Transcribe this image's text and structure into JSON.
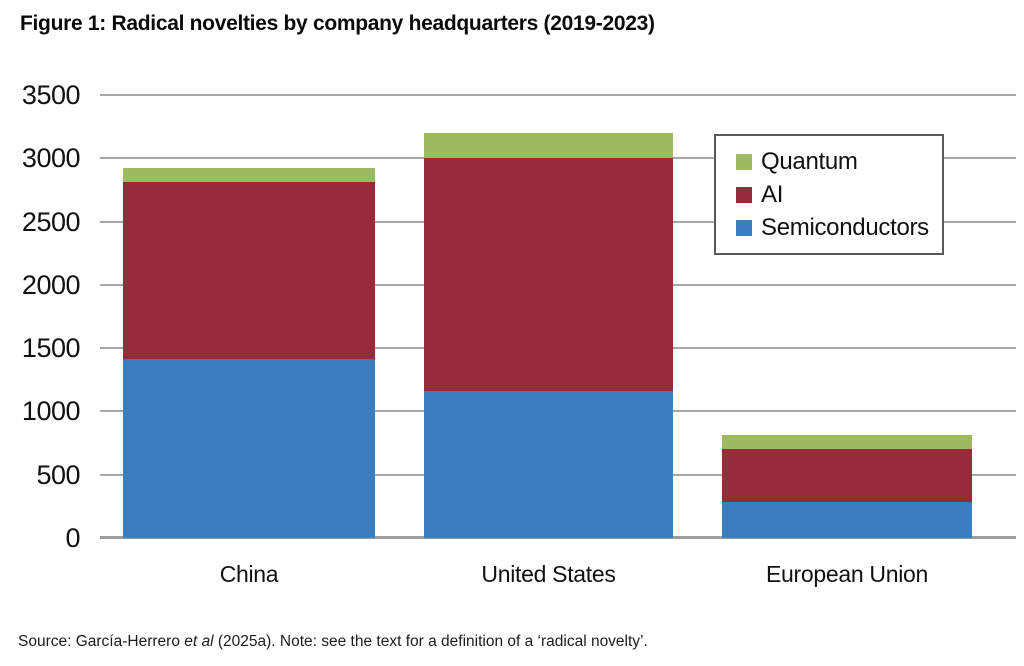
{
  "figure": {
    "title": "Figure 1: Radical novelties by company headquarters (2019-2023)",
    "source_prefix": "Source: García-Herrero ",
    "source_italic": "et al",
    "source_suffix": " (2025a). Note: see the text for a definition of a ‘radical novelty’."
  },
  "colors": {
    "semiconductors": "#3A7EBD",
    "ai": "#972B3A",
    "quantum": "#9DBA61",
    "gridline": "#A6A6A6",
    "legend_border": "#595959"
  },
  "chart_data": {
    "type": "bar",
    "stacked": true,
    "title": "Figure 1: Radical novelties by company headquarters (2019-2023)",
    "categories": [
      "China",
      "United States",
      "European Union"
    ],
    "series": [
      {
        "name": "Semiconductors",
        "color": "#3A7EBD",
        "values": [
          1415,
          1165,
          285
        ]
      },
      {
        "name": "AI",
        "color": "#972B3A",
        "values": [
          1395,
          1835,
          415
        ]
      },
      {
        "name": "Quantum",
        "color": "#9DBA61",
        "values": [
          115,
          200,
          115
        ]
      }
    ],
    "totals": [
      2925,
      3200,
      815
    ],
    "xlabel": "",
    "ylabel": "",
    "ylim": [
      0,
      3500
    ],
    "yticks": [
      0,
      500,
      1000,
      1500,
      2000,
      2500,
      3000,
      3500
    ],
    "grid": true,
    "legend": [
      "Quantum",
      "AI",
      "Semiconductors"
    ],
    "legend_position": "upper right"
  }
}
